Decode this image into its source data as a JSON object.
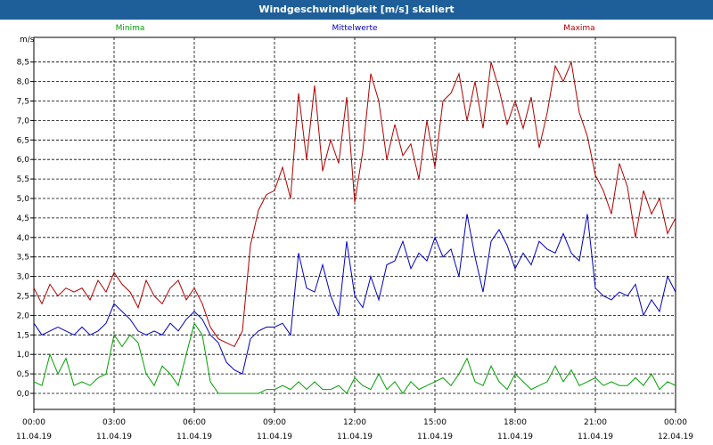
{
  "window": {
    "title": "Windgeschwindigkeit [m/s] skaliert"
  },
  "chart_data": {
    "type": "line",
    "title": "Windgeschwindigkeit [m/s] skaliert",
    "ylabel": "m/s",
    "ylim": [
      0,
      9
    ],
    "xlim": [
      0,
      24
    ],
    "grid": true,
    "legend_position": "top",
    "y_ticks": [
      "0,0",
      "0,5",
      "1,0",
      "1,5",
      "2,0",
      "2,5",
      "3,0",
      "3,5",
      "4,0",
      "4,5",
      "5,0",
      "5,5",
      "6,0",
      "6,5",
      "7,0",
      "7,5",
      "8,0",
      "8,5"
    ],
    "x_ticks": [
      {
        "time": "00:00",
        "date": "11.04.19"
      },
      {
        "time": "03:00",
        "date": "11.04.19"
      },
      {
        "time": "06:00",
        "date": "11.04.19"
      },
      {
        "time": "09:00",
        "date": "11.04.19"
      },
      {
        "time": "12:00",
        "date": "11.04.19"
      },
      {
        "time": "15:00",
        "date": "11.04.19"
      },
      {
        "time": "18:00",
        "date": "11.04.19"
      },
      {
        "time": "21:00",
        "date": "11.04.19"
      },
      {
        "time": "00:00",
        "date": "12.04.19"
      }
    ],
    "series": [
      {
        "name": "Minima",
        "color": "#00a000",
        "x": [
          0,
          0.3,
          0.6,
          0.9,
          1.2,
          1.5,
          1.8,
          2.1,
          2.4,
          2.7,
          3.0,
          3.3,
          3.6,
          3.9,
          4.2,
          4.5,
          4.8,
          5.1,
          5.4,
          5.7,
          6.0,
          6.3,
          6.6,
          6.9,
          7.2,
          7.5,
          7.8,
          8.1,
          8.4,
          8.7,
          9.0,
          9.3,
          9.6,
          9.9,
          10.2,
          10.5,
          10.8,
          11.1,
          11.4,
          11.7,
          12.0,
          12.3,
          12.6,
          12.9,
          13.2,
          13.5,
          13.8,
          14.1,
          14.4,
          14.7,
          15.0,
          15.3,
          15.6,
          15.9,
          16.2,
          16.5,
          16.8,
          17.1,
          17.4,
          17.7,
          18.0,
          18.3,
          18.6,
          18.9,
          19.2,
          19.5,
          19.8,
          20.1,
          20.4,
          20.7,
          21.0,
          21.3,
          21.6,
          21.9,
          22.2,
          22.5,
          22.8,
          23.1,
          23.4,
          23.7,
          24.0
        ],
        "values": [
          0.3,
          0.2,
          1.0,
          0.5,
          0.9,
          0.2,
          0.3,
          0.2,
          0.4,
          0.5,
          1.5,
          1.2,
          1.5,
          1.3,
          0.5,
          0.2,
          0.7,
          0.5,
          0.2,
          1.0,
          1.8,
          1.5,
          0.3,
          0.0,
          0.0,
          0.0,
          0.0,
          0.0,
          0.0,
          0.1,
          0.1,
          0.2,
          0.1,
          0.3,
          0.1,
          0.3,
          0.1,
          0.1,
          0.2,
          0.0,
          0.4,
          0.2,
          0.1,
          0.5,
          0.1,
          0.3,
          0.0,
          0.3,
          0.1,
          0.2,
          0.3,
          0.4,
          0.2,
          0.5,
          0.9,
          0.3,
          0.2,
          0.7,
          0.3,
          0.1,
          0.5,
          0.3,
          0.1,
          0.2,
          0.3,
          0.7,
          0.3,
          0.6,
          0.2,
          0.3,
          0.4,
          0.2,
          0.3,
          0.2,
          0.2,
          0.4,
          0.2,
          0.5,
          0.1,
          0.3,
          0.2
        ]
      },
      {
        "name": "Mittelwerte",
        "color": "#0000c0",
        "x": [
          0,
          0.3,
          0.6,
          0.9,
          1.2,
          1.5,
          1.8,
          2.1,
          2.4,
          2.7,
          3.0,
          3.3,
          3.6,
          3.9,
          4.2,
          4.5,
          4.8,
          5.1,
          5.4,
          5.7,
          6.0,
          6.3,
          6.6,
          6.9,
          7.2,
          7.5,
          7.8,
          8.1,
          8.4,
          8.7,
          9.0,
          9.3,
          9.6,
          9.9,
          10.2,
          10.5,
          10.8,
          11.1,
          11.4,
          11.7,
          12.0,
          12.3,
          12.6,
          12.9,
          13.2,
          13.5,
          13.8,
          14.1,
          14.4,
          14.7,
          15.0,
          15.3,
          15.6,
          15.9,
          16.2,
          16.5,
          16.8,
          17.1,
          17.4,
          17.7,
          18.0,
          18.3,
          18.6,
          18.9,
          19.2,
          19.5,
          19.8,
          20.1,
          20.4,
          20.7,
          21.0,
          21.3,
          21.6,
          21.9,
          22.2,
          22.5,
          22.8,
          23.1,
          23.4,
          23.7,
          24.0
        ],
        "values": [
          1.8,
          1.5,
          1.6,
          1.7,
          1.6,
          1.5,
          1.7,
          1.5,
          1.6,
          1.8,
          2.3,
          2.1,
          1.9,
          1.6,
          1.5,
          1.6,
          1.5,
          1.8,
          1.6,
          1.9,
          2.1,
          1.9,
          1.5,
          1.3,
          0.8,
          0.6,
          0.5,
          1.4,
          1.6,
          1.7,
          1.7,
          1.8,
          1.5,
          3.6,
          2.7,
          2.6,
          3.3,
          2.5,
          2.0,
          3.9,
          2.5,
          2.2,
          3.0,
          2.4,
          3.3,
          3.4,
          3.9,
          3.2,
          3.6,
          3.4,
          4.0,
          3.5,
          3.7,
          3.0,
          4.6,
          3.5,
          2.6,
          3.9,
          4.2,
          3.8,
          3.2,
          3.6,
          3.3,
          3.9,
          3.7,
          3.6,
          4.1,
          3.6,
          3.4,
          4.6,
          2.7,
          2.5,
          2.4,
          2.6,
          2.5,
          2.8,
          2.0,
          2.4,
          2.1,
          3.0,
          2.6
        ]
      },
      {
        "name": "Maxima",
        "color": "#b00000",
        "x": [
          0,
          0.3,
          0.6,
          0.9,
          1.2,
          1.5,
          1.8,
          2.1,
          2.4,
          2.7,
          3.0,
          3.3,
          3.6,
          3.9,
          4.2,
          4.5,
          4.8,
          5.1,
          5.4,
          5.7,
          6.0,
          6.3,
          6.6,
          6.9,
          7.2,
          7.5,
          7.8,
          8.1,
          8.4,
          8.7,
          9.0,
          9.3,
          9.6,
          9.9,
          10.2,
          10.5,
          10.8,
          11.1,
          11.4,
          11.7,
          12.0,
          12.3,
          12.6,
          12.9,
          13.2,
          13.5,
          13.8,
          14.1,
          14.4,
          14.7,
          15.0,
          15.3,
          15.6,
          15.9,
          16.2,
          16.5,
          16.8,
          17.1,
          17.4,
          17.7,
          18.0,
          18.3,
          18.6,
          18.9,
          19.2,
          19.5,
          19.8,
          20.1,
          20.4,
          20.7,
          21.0,
          21.3,
          21.6,
          21.9,
          22.2,
          22.5,
          22.8,
          23.1,
          23.4,
          23.7,
          24.0
        ],
        "values": [
          2.7,
          2.3,
          2.8,
          2.5,
          2.7,
          2.6,
          2.7,
          2.4,
          2.9,
          2.6,
          3.1,
          2.8,
          2.6,
          2.2,
          2.9,
          2.5,
          2.3,
          2.7,
          2.9,
          2.4,
          2.7,
          2.3,
          1.7,
          1.4,
          1.3,
          1.2,
          1.6,
          3.8,
          4.7,
          5.1,
          5.2,
          5.8,
          5.0,
          7.7,
          6.0,
          7.9,
          5.7,
          6.5,
          5.9,
          7.6,
          4.9,
          6.2,
          8.2,
          7.5,
          6.0,
          6.9,
          6.1,
          6.4,
          5.5,
          7.0,
          5.8,
          7.5,
          7.7,
          8.2,
          7.0,
          8.0,
          6.8,
          8.5,
          7.8,
          6.9,
          7.5,
          6.8,
          7.6,
          6.3,
          7.2,
          8.4,
          8.0,
          8.5,
          7.2,
          6.6,
          5.6,
          5.2,
          4.6,
          5.9,
          5.3,
          4.0,
          5.2,
          4.6,
          5.0,
          4.1,
          4.5
        ]
      }
    ]
  }
}
